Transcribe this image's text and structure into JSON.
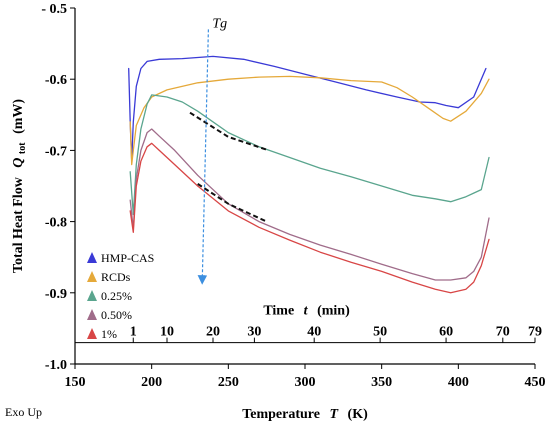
{
  "chart_data": {
    "type": "line",
    "xlabel": "Temperature T (K)",
    "ylabel": "Total Heat Flow Q_tot (mW)",
    "xlabel_parts": {
      "text": "Temperature",
      "symbol": "T",
      "unit": "(K)"
    },
    "ylabel_parts": {
      "text": "Total Heat Flow",
      "symbol": "Q",
      "subscript": "tot",
      "unit": "(mW)"
    },
    "time_axis_label_parts": {
      "text": "Time",
      "symbol": "t",
      "unit": "(min)"
    },
    "xlim": [
      150,
      450
    ],
    "ylim": [
      -1.0,
      -0.5
    ],
    "x_ticks": [
      150,
      200,
      250,
      300,
      350,
      400,
      450
    ],
    "x_tick_labels": [
      "150",
      "200",
      "250",
      "300",
      "350",
      "400",
      "450"
    ],
    "y_ticks": [
      -0.5,
      -0.6,
      -0.7,
      -0.8,
      -0.9,
      -1.0
    ],
    "y_tick_labels": [
      "- 0.5",
      "-0.6",
      "-0.7",
      "-0.8",
      "-0.9",
      "-1.0"
    ],
    "time_axis": {
      "y_level": -0.97,
      "ticks": [
        {
          "label": "1",
          "temperature": 188
        },
        {
          "label": "10",
          "temperature": 210
        },
        {
          "label": "20",
          "temperature": 240
        },
        {
          "label": "30",
          "temperature": 267
        },
        {
          "label": "40",
          "temperature": 306
        },
        {
          "label": "50",
          "temperature": 349
        },
        {
          "label": "60",
          "temperature": 392
        },
        {
          "label": "70",
          "temperature": 429
        },
        {
          "label": "79",
          "temperature": 450
        }
      ]
    },
    "legend": {
      "placement": "lower-left",
      "entries": [
        "HMP-CAS",
        "RCDs",
        "0.25%",
        "0.50%",
        "1%"
      ]
    },
    "series": [
      {
        "name": "HMP-CAS",
        "color": "#3a3ad6",
        "x": [
          185,
          186,
          187,
          188,
          190,
          193,
          197,
          205,
          220,
          240,
          260,
          280,
          300,
          320,
          340,
          360,
          375,
          385,
          392,
          400,
          410,
          418
        ],
        "y": [
          -0.585,
          -0.66,
          -0.715,
          -0.66,
          -0.61,
          -0.585,
          -0.575,
          -0.572,
          -0.571,
          -0.568,
          -0.572,
          -0.582,
          -0.593,
          -0.604,
          -0.615,
          -0.625,
          -0.632,
          -0.633,
          -0.637,
          -0.64,
          -0.625,
          -0.585
        ]
      },
      {
        "name": "RCDs",
        "color": "#e5a93a",
        "x": [
          186,
          187,
          188,
          190,
          195,
          200,
          210,
          230,
          250,
          270,
          290,
          310,
          330,
          350,
          360,
          370,
          380,
          390,
          395,
          405,
          415,
          420
        ],
        "y": [
          -0.66,
          -0.72,
          -0.7,
          -0.665,
          -0.64,
          -0.625,
          -0.615,
          -0.605,
          -0.6,
          -0.597,
          -0.596,
          -0.598,
          -0.602,
          -0.604,
          -0.612,
          -0.625,
          -0.64,
          -0.655,
          -0.659,
          -0.645,
          -0.62,
          -0.6
        ]
      },
      {
        "name": "0.25%",
        "color": "#5aa58e",
        "x": [
          186,
          188,
          190,
          193,
          197,
          200,
          210,
          220,
          230,
          250,
          270,
          290,
          310,
          330,
          350,
          370,
          385,
          395,
          405,
          410,
          415,
          420
        ],
        "y": [
          -0.73,
          -0.79,
          -0.72,
          -0.67,
          -0.635,
          -0.622,
          -0.625,
          -0.632,
          -0.645,
          -0.675,
          -0.695,
          -0.71,
          -0.725,
          -0.737,
          -0.75,
          -0.763,
          -0.768,
          -0.772,
          -0.765,
          -0.76,
          -0.755,
          -0.71
        ]
      },
      {
        "name": "0.50%",
        "color": "#a06c8a",
        "x": [
          186,
          188,
          190,
          193,
          197,
          200,
          205,
          215,
          230,
          250,
          270,
          290,
          310,
          330,
          350,
          370,
          385,
          395,
          405,
          410,
          415,
          420
        ],
        "y": [
          -0.77,
          -0.81,
          -0.74,
          -0.7,
          -0.675,
          -0.67,
          -0.68,
          -0.7,
          -0.735,
          -0.775,
          -0.8,
          -0.818,
          -0.833,
          -0.846,
          -0.86,
          -0.873,
          -0.882,
          -0.882,
          -0.879,
          -0.87,
          -0.85,
          -0.795
        ]
      },
      {
        "name": "1%",
        "color": "#d84646",
        "x": [
          186,
          188,
          190,
          193,
          197,
          200,
          205,
          215,
          230,
          250,
          270,
          290,
          310,
          330,
          350,
          370,
          385,
          395,
          405,
          410,
          415,
          420
        ],
        "y": [
          -0.785,
          -0.815,
          -0.75,
          -0.715,
          -0.695,
          -0.69,
          -0.7,
          -0.72,
          -0.75,
          -0.785,
          -0.808,
          -0.826,
          -0.843,
          -0.857,
          -0.87,
          -0.885,
          -0.895,
          -0.9,
          -0.895,
          -0.885,
          -0.862,
          -0.825
        ]
      }
    ],
    "annotations": {
      "tg_label": "Tg",
      "tg_arrow": {
        "x_start": 237,
        "y_start": -0.53,
        "x_end": 233,
        "y_end": -0.882
      },
      "dashed_segments": [
        {
          "x": [
            225,
            250,
            275
          ],
          "y": [
            -0.647,
            -0.681,
            -0.699
          ]
        },
        {
          "x": [
            230,
            250,
            275
          ],
          "y": [
            -0.747,
            -0.775,
            -0.8
          ]
        }
      ]
    },
    "grid": false,
    "exo_label": "Exo Up"
  }
}
